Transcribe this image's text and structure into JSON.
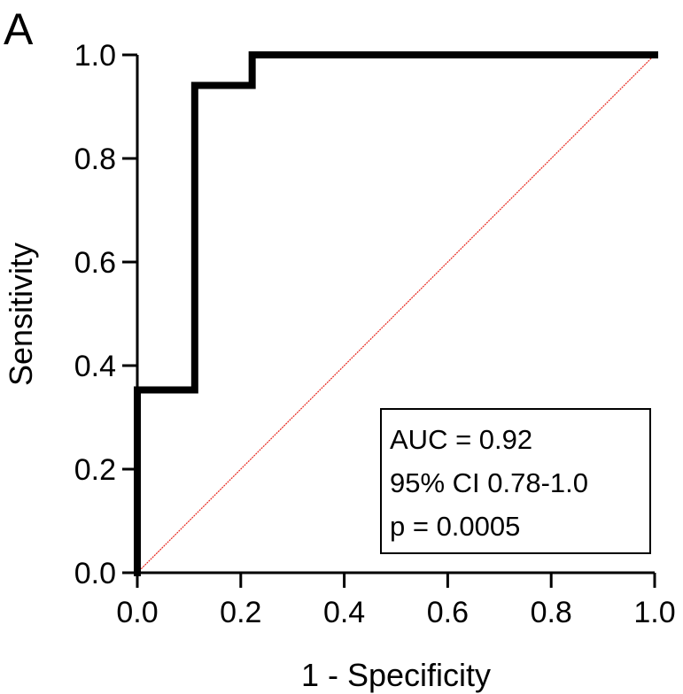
{
  "panel_label": "A",
  "chart_data": {
    "type": "line",
    "title": "",
    "xlabel": "1 - Specificity",
    "ylabel": "Sensitivity",
    "xlim": [
      0,
      1
    ],
    "ylim": [
      0,
      1
    ],
    "grid": false,
    "xticks": [
      "0.0",
      "0.2",
      "0.4",
      "0.6",
      "0.8",
      "1.0"
    ],
    "yticks": [
      "0.0",
      "0.2",
      "0.4",
      "0.6",
      "0.8",
      "1.0"
    ],
    "series": [
      {
        "x": [
          0,
          0,
          0.111,
          0.111,
          0.222,
          0.222,
          1.0
        ],
        "y": [
          0,
          0.353,
          0.353,
          0.941,
          0.941,
          1.0,
          1.0
        ],
        "color": "#000000",
        "style": "step"
      },
      {
        "x": [
          0,
          1
        ],
        "y": [
          0,
          1
        ],
        "color": "#e8281e",
        "style": "dotted-reference"
      }
    ],
    "annotations": [
      "AUC = 0.92",
      "95% CI 0.78-1.0",
      "p = 0.0005"
    ],
    "annotation_placement": "bottom-right"
  }
}
